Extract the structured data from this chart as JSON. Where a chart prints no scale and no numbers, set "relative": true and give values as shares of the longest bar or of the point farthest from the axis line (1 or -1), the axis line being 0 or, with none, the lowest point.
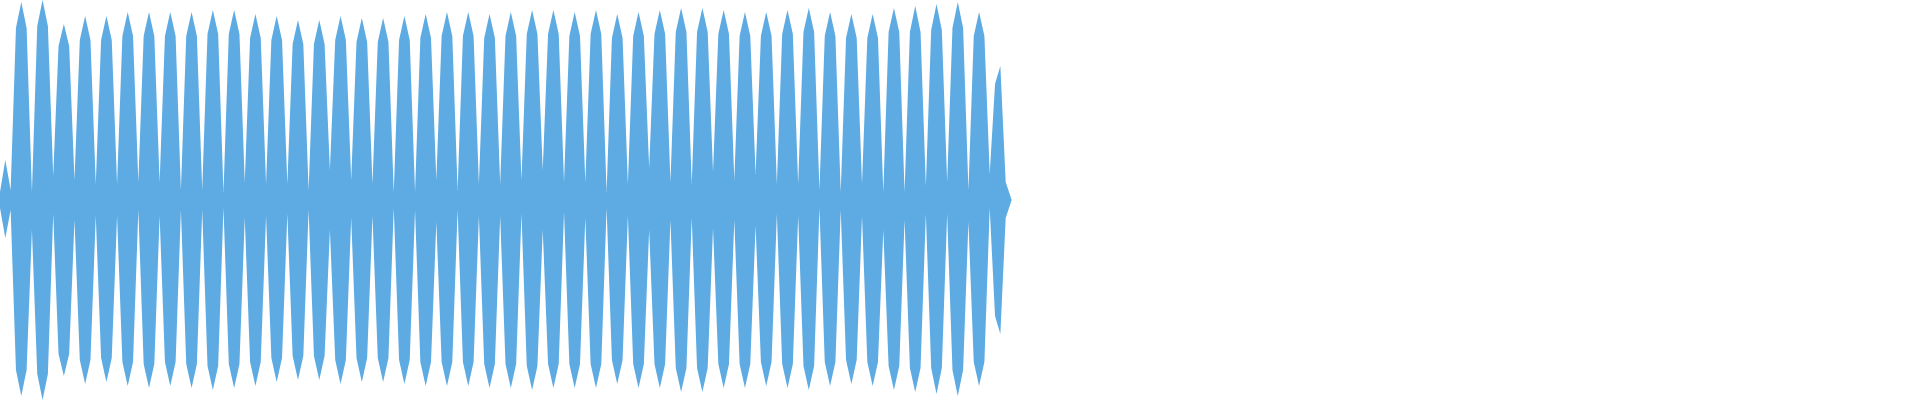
{
  "chart_data": {
    "type": "area",
    "relative": true,
    "categories": [
      null,
      null,
      null,
      null,
      null,
      null,
      null,
      null,
      null,
      null,
      null,
      null,
      null,
      null,
      null,
      null,
      null,
      null,
      null,
      null,
      null,
      null,
      null,
      null,
      null,
      null,
      null,
      null,
      null,
      null,
      null,
      null,
      null,
      null,
      null,
      null,
      null,
      null,
      null,
      null,
      null,
      null,
      null,
      null,
      null,
      null,
      null,
      null,
      null,
      null,
      null,
      null,
      null,
      null,
      null,
      null,
      null,
      null,
      null,
      null,
      null,
      null,
      null,
      null,
      null,
      null,
      null,
      null,
      null,
      null,
      null,
      null,
      null,
      null,
      null,
      null,
      null,
      null,
      null,
      null,
      null,
      null,
      null,
      null,
      null,
      null,
      null,
      null,
      null,
      null,
      null,
      null,
      null,
      null,
      null,
      null,
      null,
      null,
      null,
      null,
      null,
      null,
      null,
      null,
      null,
      null,
      null,
      null,
      null,
      null,
      null,
      null,
      null,
      null,
      null,
      null,
      null,
      null,
      null,
      null,
      null,
      null,
      null,
      null,
      null,
      null,
      null,
      null,
      null,
      null,
      null,
      null,
      null,
      null,
      null,
      null,
      null,
      null,
      null,
      null,
      null,
      null,
      null,
      null,
      null,
      null,
      null,
      null,
      null,
      null,
      null,
      null,
      null,
      null,
      null,
      null,
      null,
      null,
      null,
      null,
      null,
      null,
      null,
      null,
      null,
      null,
      null,
      null,
      null,
      null,
      null,
      null,
      null,
      null,
      null,
      null,
      null,
      null,
      null,
      null,
      null,
      null,
      null,
      null,
      null,
      null,
      null,
      null,
      null,
      null,
      null
    ],
    "series": [
      {
        "color": "#5dabe2",
        "values": [
          0.04,
          0.2,
          0.05,
          0.86,
          0.99,
          0.86,
          0.04,
          0.87,
          1.0,
          0.87,
          0.12,
          0.77,
          0.88,
          0.77,
          0.1,
          0.8,
          0.92,
          0.8,
          0.08,
          0.8,
          0.92,
          0.8,
          0.08,
          0.82,
          0.94,
          0.82,
          0.09,
          0.82,
          0.94,
          0.82,
          0.09,
          0.82,
          0.94,
          0.82,
          0.05,
          0.82,
          0.94,
          0.82,
          0.05,
          0.83,
          0.95,
          0.83,
          0.04,
          0.83,
          0.95,
          0.83,
          0.09,
          0.81,
          0.93,
          0.81,
          0.08,
          0.8,
          0.92,
          0.8,
          0.08,
          0.78,
          0.9,
          0.78,
          0.05,
          0.78,
          0.9,
          0.78,
          0.15,
          0.8,
          0.92,
          0.8,
          0.1,
          0.79,
          0.91,
          0.79,
          0.08,
          0.79,
          0.91,
          0.79,
          0.04,
          0.8,
          0.92,
          0.8,
          0.04,
          0.81,
          0.93,
          0.81,
          0.1,
          0.82,
          0.94,
          0.82,
          0.05,
          0.82,
          0.94,
          0.82,
          0.08,
          0.81,
          0.93,
          0.81,
          0.08,
          0.82,
          0.94,
          0.82,
          0.1,
          0.83,
          0.95,
          0.83,
          0.15,
          0.83,
          0.95,
          0.83,
          0.09,
          0.82,
          0.94,
          0.82,
          0.09,
          0.83,
          0.95,
          0.83,
          0.04,
          0.81,
          0.93,
          0.81,
          0.08,
          0.82,
          0.94,
          0.82,
          0.16,
          0.83,
          0.95,
          0.83,
          0.09,
          0.84,
          0.96,
          0.84,
          0.08,
          0.84,
          0.96,
          0.84,
          0.14,
          0.83,
          0.95,
          0.83,
          0.1,
          0.82,
          0.94,
          0.82,
          0.13,
          0.82,
          0.94,
          0.82,
          0.08,
          0.83,
          0.95,
          0.83,
          0.08,
          0.84,
          0.96,
          0.84,
          0.05,
          0.82,
          0.94,
          0.82,
          0.04,
          0.81,
          0.93,
          0.81,
          0.08,
          0.81,
          0.93,
          0.81,
          0.04,
          0.84,
          0.96,
          0.84,
          0.04,
          0.84,
          0.97,
          0.84,
          0.07,
          0.85,
          0.98,
          0.85,
          0.09,
          0.86,
          0.99,
          0.86,
          0.05,
          0.82,
          0.94,
          0.82,
          0.13,
          0.58,
          0.67,
          0.09,
          0.01
        ]
      },
      {
        "color": "#5dabe2",
        "values": [
          -0.04,
          -0.19,
          -0.05,
          -0.85,
          -0.98,
          -0.85,
          -0.15,
          -0.87,
          -1.0,
          -0.87,
          -0.07,
          -0.77,
          -0.88,
          -0.77,
          -0.1,
          -0.8,
          -0.92,
          -0.8,
          -0.08,
          -0.79,
          -0.91,
          -0.79,
          -0.08,
          -0.81,
          -0.93,
          -0.81,
          -0.05,
          -0.82,
          -0.94,
          -0.82,
          -0.08,
          -0.81,
          -0.93,
          -0.81,
          -0.05,
          -0.82,
          -0.94,
          -0.82,
          -0.05,
          -0.83,
          -0.95,
          -0.83,
          -0.04,
          -0.82,
          -0.94,
          -0.82,
          -0.09,
          -0.81,
          -0.93,
          -0.81,
          -0.08,
          -0.79,
          -0.91,
          -0.79,
          -0.07,
          -0.78,
          -0.9,
          -0.78,
          -0.05,
          -0.78,
          -0.9,
          -0.78,
          -0.15,
          -0.8,
          -0.92,
          -0.8,
          -0.09,
          -0.79,
          -0.91,
          -0.79,
          -0.08,
          -0.79,
          -0.91,
          -0.79,
          -0.04,
          -0.8,
          -0.92,
          -0.8,
          -0.05,
          -0.81,
          -0.93,
          -0.81,
          -0.11,
          -0.81,
          -0.93,
          -0.81,
          -0.05,
          -0.81,
          -0.93,
          -0.81,
          -0.08,
          -0.82,
          -0.94,
          -0.82,
          -0.08,
          -0.82,
          -0.94,
          -0.82,
          -0.07,
          -0.83,
          -0.95,
          -0.83,
          -0.15,
          -0.82,
          -0.94,
          -0.82,
          -0.06,
          -0.82,
          -0.94,
          -0.82,
          -0.09,
          -0.82,
          -0.94,
          -0.82,
          -0.04,
          -0.8,
          -0.92,
          -0.8,
          -0.08,
          -0.82,
          -0.94,
          -0.82,
          -0.15,
          -0.82,
          -0.94,
          -0.82,
          -0.1,
          -0.84,
          -0.96,
          -0.84,
          -0.09,
          -0.84,
          -0.96,
          -0.84,
          -0.14,
          -0.82,
          -0.94,
          -0.82,
          -0.1,
          -0.82,
          -0.94,
          -0.82,
          -0.13,
          -0.81,
          -0.93,
          -0.81,
          -0.07,
          -0.82,
          -0.94,
          -0.82,
          -0.08,
          -0.83,
          -0.95,
          -0.83,
          -0.04,
          -0.81,
          -0.93,
          -0.81,
          -0.05,
          -0.8,
          -0.92,
          -0.8,
          -0.08,
          -0.81,
          -0.93,
          -0.81,
          -0.15,
          -0.83,
          -0.95,
          -0.83,
          -0.1,
          -0.84,
          -0.96,
          -0.84,
          -0.07,
          -0.84,
          -0.97,
          -0.84,
          -0.07,
          -0.85,
          -0.98,
          -0.85,
          -0.11,
          -0.81,
          -0.93,
          -0.81,
          -0.04,
          -0.58,
          -0.67,
          -0.09,
          -0.01
        ]
      }
    ]
  }
}
